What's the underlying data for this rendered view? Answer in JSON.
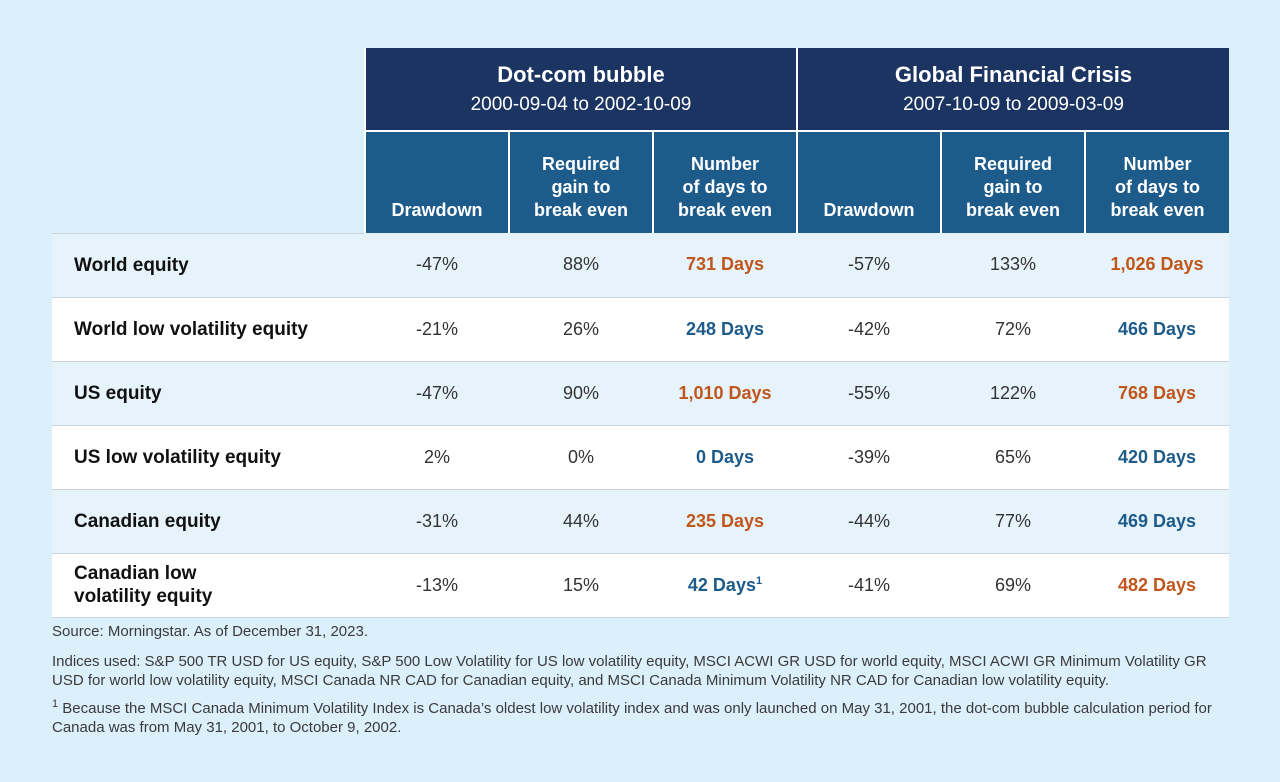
{
  "header": {
    "group1": {
      "title": "Dot-com bubble",
      "dates": "2000-09-04 to 2002-10-09"
    },
    "group2": {
      "title": "Global Financial Crisis",
      "dates": "2007-10-09 to 2009-03-09"
    },
    "sub": {
      "drawdown": "Drawdown",
      "gain_l1": "Required",
      "gain_l2": "gain to",
      "gain_l3": "break even",
      "days_l1": "Number",
      "days_l2": "of days to",
      "days_l3": "break even"
    }
  },
  "rows": [
    {
      "name": "World equity",
      "d1": "-47%",
      "g1": "88%",
      "n1": "731 Days",
      "d2": "-57%",
      "g2": "133%",
      "n2": "1,026 Days"
    },
    {
      "name": "World low volatility equity",
      "d1": "-21%",
      "g1": "26%",
      "n1": "248 Days",
      "d2": "-42%",
      "g2": "72%",
      "n2": "466 Days"
    },
    {
      "name": "US equity",
      "d1": "-47%",
      "g1": "90%",
      "n1": "1,010 Days",
      "d2": "-55%",
      "g2": "122%",
      "n2": "768 Days"
    },
    {
      "name": "US low volatility equity",
      "d1": "2%",
      "g1": "0%",
      "n1": "0 Days",
      "d2": "-39%",
      "g2": "65%",
      "n2": "420 Days"
    },
    {
      "name": "Canadian equity",
      "d1": "-31%",
      "g1": "44%",
      "n1": "235 Days",
      "d2": "-44%",
      "g2": "77%",
      "n2": "469 Days"
    },
    {
      "name_l1": "Canadian low",
      "name_l2": "volatility equity",
      "d1": "-13%",
      "g1": "15%",
      "n1": "42 Days",
      "n1_sup": "1",
      "d2": "-41%",
      "g2": "69%",
      "n2": "482 Days"
    }
  ],
  "notes": {
    "source": "Source: Morningstar. As of December 31, 2023.",
    "indices": "Indices used: S&P 500 TR USD for US equity, S&P 500 Low Volatility for US low volatility equity, MSCI ACWI GR USD for world equity, MSCI ACWI GR Minimum Volatility GR USD for world low volatility equity, MSCI Canada NR CAD for Canadian equity, and MSCI Canada Minimum Volatility NR CAD for Canadian low volatility equity.",
    "footnote_mark": "1",
    "footnote": " Because the MSCI Canada Minimum Volatility Index is Canada’s oldest low volatility index and was only launched on May 31, 2001, the dot-com bubble calculation period for Canada was from May 31, 2001, to October 9, 2002."
  },
  "colors": {
    "orange": "#c0561c",
    "blue": "#1d5b8b",
    "navy": "#1b3461",
    "background": "#dcf0fb"
  }
}
